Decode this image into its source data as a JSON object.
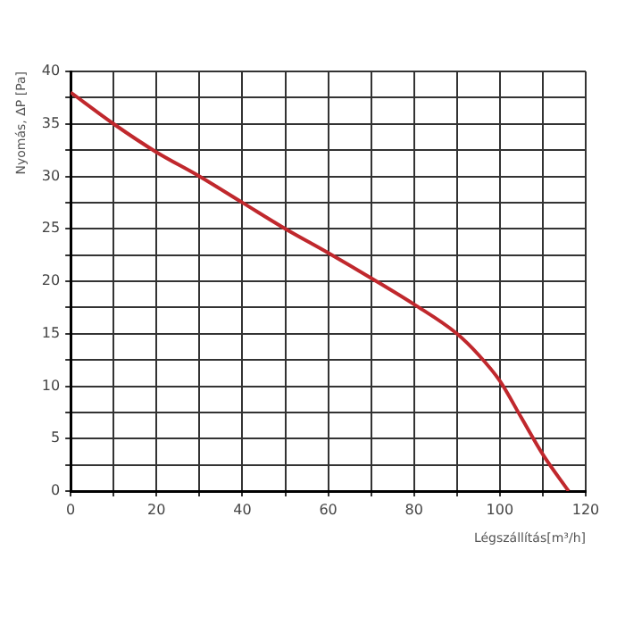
{
  "chart_data": {
    "type": "line",
    "xlabel": "Légszállítás[m³/h]",
    "ylabel": "Nyomás, ΔP [Pa]",
    "x": [
      0,
      10,
      20,
      30,
      40,
      50,
      60,
      70,
      80,
      90,
      95,
      100,
      105,
      110,
      116
    ],
    "series": [
      {
        "color": "#c0282d",
        "values": [
          38,
          35,
          32.3,
          30,
          27.5,
          25,
          22.7,
          20.3,
          17.8,
          15,
          13,
          10.5,
          7,
          3.5,
          0
        ]
      }
    ],
    "xlim": [
      0,
      120
    ],
    "xticks": [
      0,
      {
        "value": 10,
        "label": null
      },
      20,
      {
        "value": 30,
        "label": null
      },
      40,
      {
        "value": 50,
        "label": null
      },
      60,
      {
        "value": 70,
        "label": null
      },
      80,
      {
        "value": 90,
        "label": null
      },
      100,
      {
        "value": 110,
        "label": null
      },
      120
    ],
    "ylim": [
      0,
      40
    ],
    "yticks": [
      0,
      {
        "value": 2.5,
        "label": null
      },
      5,
      {
        "value": 7.5,
        "label": null
      },
      10,
      {
        "value": 12.5,
        "label": null
      },
      15,
      {
        "value": 17.5,
        "label": null
      },
      20,
      {
        "value": 22.5,
        "label": null
      },
      25,
      {
        "value": 27.5,
        "label": null
      },
      30,
      {
        "value": 32.5,
        "label": null
      },
      35,
      {
        "value": 37.5,
        "label": null
      },
      40
    ],
    "grid": true,
    "legend": false,
    "marker": "none",
    "line_style": "solid"
  }
}
